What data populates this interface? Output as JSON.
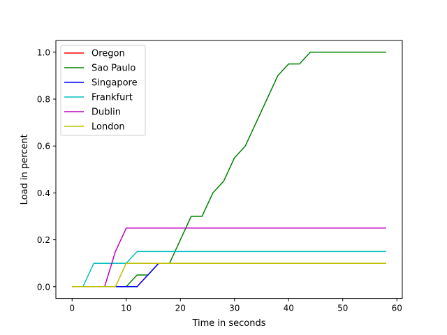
{
  "chart_data": {
    "type": "line",
    "title": "",
    "xlabel": "Time in seconds",
    "ylabel": "Load in percent",
    "xlim": [
      -3,
      61
    ],
    "ylim": [
      -0.05,
      1.05
    ],
    "xticks": [
      0,
      10,
      20,
      30,
      40,
      50,
      60
    ],
    "yticks": [
      0.0,
      0.2,
      0.4,
      0.6,
      0.8,
      1.0
    ],
    "xtick_labels": [
      "0",
      "10",
      "20",
      "30",
      "40",
      "50",
      "60"
    ],
    "ytick_labels": [
      "0.0",
      "0.2",
      "0.4",
      "0.6",
      "0.8",
      "1.0"
    ],
    "grid": false,
    "legend_position": "top-left",
    "x": [
      0,
      2,
      4,
      6,
      8,
      10,
      12,
      14,
      16,
      18,
      20,
      22,
      24,
      26,
      28,
      30,
      32,
      34,
      36,
      38,
      40,
      42,
      44,
      46,
      48,
      50,
      52,
      54,
      56,
      58
    ],
    "series": [
      {
        "name": "Oregon",
        "color": "#ff0000",
        "values": [
          0,
          0,
          0,
          0,
          0,
          0,
          0,
          0.05,
          0.1,
          0.1,
          0.1,
          0.1,
          0.1,
          0.1,
          0.1,
          0.1,
          0.1,
          0.1,
          0.1,
          0.1,
          0.1,
          0.1,
          0.1,
          0.1,
          0.1,
          0.1,
          0.1,
          0.1,
          0.1,
          0.1
        ]
      },
      {
        "name": "Sao Paulo",
        "color": "#008000",
        "values": [
          0,
          0,
          0,
          0,
          0,
          0,
          0.05,
          0.05,
          0.1,
          0.1,
          0.2,
          0.3,
          0.3,
          0.4,
          0.45,
          0.55,
          0.6,
          0.7,
          0.8,
          0.9,
          0.95,
          0.95,
          1.0,
          1.0,
          1.0,
          1.0,
          1.0,
          1.0,
          1.0,
          1.0
        ]
      },
      {
        "name": "Singapore",
        "color": "#0000ff",
        "values": [
          0,
          0,
          0,
          0,
          0,
          0,
          0,
          0.05,
          0.1,
          0.1,
          0.1,
          0.1,
          0.1,
          0.1,
          0.1,
          0.1,
          0.1,
          0.1,
          0.1,
          0.1,
          0.1,
          0.1,
          0.1,
          0.1,
          0.1,
          0.1,
          0.1,
          0.1,
          0.1,
          0.1
        ]
      },
      {
        "name": "Frankfurt",
        "color": "#00bfbf",
        "values": [
          0,
          0,
          0.1,
          0.1,
          0.1,
          0.1,
          0.15,
          0.15,
          0.15,
          0.15,
          0.15,
          0.15,
          0.15,
          0.15,
          0.15,
          0.15,
          0.15,
          0.15,
          0.15,
          0.15,
          0.15,
          0.15,
          0.15,
          0.15,
          0.15,
          0.15,
          0.15,
          0.15,
          0.15,
          0.15
        ]
      },
      {
        "name": "Dublin",
        "color": "#bf00bf",
        "values": [
          0,
          0,
          0,
          0,
          0.15,
          0.25,
          0.25,
          0.25,
          0.25,
          0.25,
          0.25,
          0.25,
          0.25,
          0.25,
          0.25,
          0.25,
          0.25,
          0.25,
          0.25,
          0.25,
          0.25,
          0.25,
          0.25,
          0.25,
          0.25,
          0.25,
          0.25,
          0.25,
          0.25,
          0.25
        ]
      },
      {
        "name": "London",
        "color": "#bfbf00",
        "values": [
          0,
          0,
          0,
          0,
          0,
          0.1,
          0.1,
          0.1,
          0.1,
          0.1,
          0.1,
          0.1,
          0.1,
          0.1,
          0.1,
          0.1,
          0.1,
          0.1,
          0.1,
          0.1,
          0.1,
          0.1,
          0.1,
          0.1,
          0.1,
          0.1,
          0.1,
          0.1,
          0.1,
          0.1
        ]
      }
    ]
  }
}
